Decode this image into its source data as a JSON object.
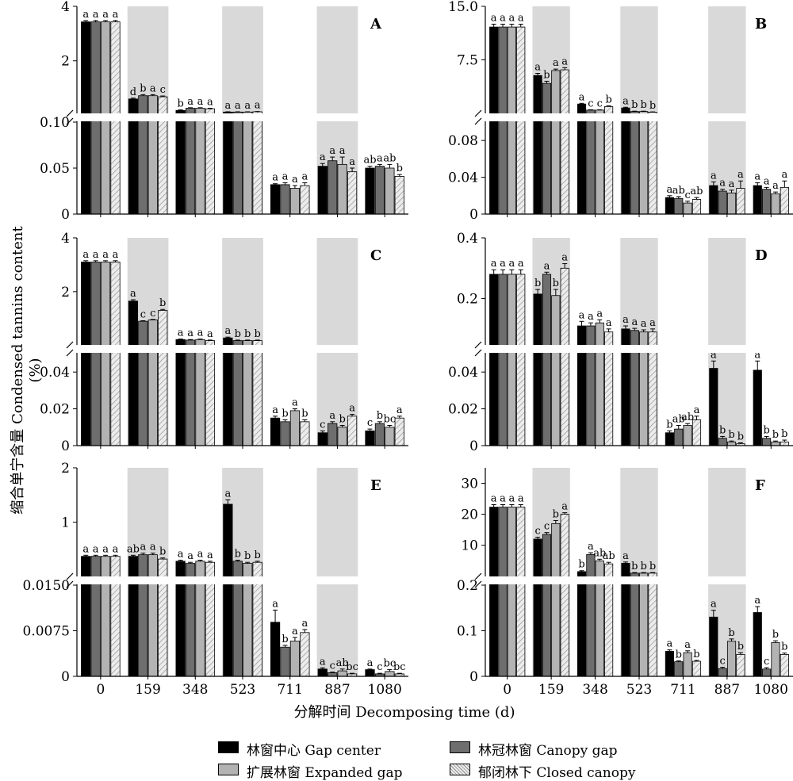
{
  "chart_data": {
    "type": "bar",
    "xlabel": "分解时间 Decomposing time (d)",
    "ylabel": "缩合单宁含量 Condensed tannins content (%)",
    "categories": [
      "0",
      "159",
      "348",
      "523",
      "711",
      "887",
      "1080"
    ],
    "series_names": [
      "林窗中心 Gap center",
      "林冠林窗 Canopy gap",
      "扩展林窗 Expanded gap",
      "郁闭林下 Closed canopy"
    ],
    "series_colors": [
      "#000000",
      "#6e6e6e",
      "#b3b3b3",
      "#e8e8e8"
    ],
    "shaded_columns": [
      "159",
      "523",
      "887"
    ],
    "panels": [
      {
        "label": "A",
        "upper_ticks": [
          "2",
          "4"
        ],
        "lower_ticks": [
          "0",
          "0.05",
          "0.10"
        ],
        "upper_range": [
          0.1,
          4
        ],
        "lower_range": [
          0,
          0.1
        ],
        "values": [
          [
            3.43,
            3.43,
            3.43,
            3.43
          ],
          [
            0.6,
            0.72,
            0.72,
            0.68
          ],
          [
            0.18,
            0.26,
            0.26,
            0.24
          ],
          [
            0.12,
            0.12,
            0.12,
            0.13
          ],
          [
            0.032,
            0.032,
            0.028,
            0.031
          ],
          [
            0.052,
            0.058,
            0.054,
            0.046
          ],
          [
            0.05,
            0.052,
            0.05,
            0.041
          ]
        ],
        "errors": [
          [
            0.05,
            0.05,
            0.05,
            0.05
          ],
          [
            0.03,
            0.04,
            0.04,
            0.03
          ],
          [
            0.02,
            0.02,
            0.02,
            0.02
          ],
          [
            0.01,
            0.01,
            0.01,
            0.01
          ],
          [
            0.001,
            0.002,
            0.003,
            0.003
          ],
          [
            0.003,
            0.004,
            0.008,
            0.004
          ],
          [
            0.002,
            0.002,
            0.004,
            0.002
          ]
        ],
        "letters": [
          [
            "a",
            "a",
            "a",
            "a"
          ],
          [
            "d",
            "b",
            "a",
            "c"
          ],
          [
            "b",
            "a",
            "a",
            "a"
          ],
          [
            "a",
            "a",
            "a",
            "a"
          ],
          [
            "a",
            "a",
            "a",
            "a"
          ],
          [
            "a",
            "a",
            "a",
            "a"
          ],
          [
            "ab",
            "a",
            "ab",
            "b"
          ]
        ]
      },
      {
        "label": "B",
        "upper_ticks": [
          "7.5",
          "15.0"
        ],
        "lower_ticks": [
          "0",
          "0.04",
          "0.08"
        ],
        "upper_range": [
          0.1,
          15
        ],
        "lower_range": [
          0,
          0.1
        ],
        "values": [
          [
            12.1,
            12.1,
            12.1,
            12.1
          ],
          [
            5.3,
            4.2,
            6.0,
            6.1
          ],
          [
            1.3,
            0.45,
            0.45,
            0.95
          ],
          [
            0.75,
            0.25,
            0.25,
            0.15
          ],
          [
            0.018,
            0.017,
            0.012,
            0.016
          ],
          [
            0.031,
            0.025,
            0.023,
            0.028
          ],
          [
            0.031,
            0.027,
            0.022,
            0.029
          ]
        ],
        "errors": [
          [
            0.4,
            0.4,
            0.4,
            0.4
          ],
          [
            0.3,
            0.3,
            0.2,
            0.3
          ],
          [
            0.1,
            0.05,
            0.05,
            0.1
          ],
          [
            0.1,
            0.05,
            0.05,
            0.05
          ],
          [
            0.002,
            0.002,
            0.002,
            0.002
          ],
          [
            0.004,
            0.002,
            0.003,
            0.008
          ],
          [
            0.003,
            0.002,
            0.002,
            0.007
          ]
        ],
        "letters": [
          [
            "a",
            "a",
            "a",
            "a"
          ],
          [
            "a",
            "b",
            "a",
            "a"
          ],
          [
            "a",
            "c",
            "c",
            "b"
          ],
          [
            "a",
            "b",
            "b",
            "b"
          ],
          [
            "a",
            "ab",
            "c",
            "ab"
          ],
          [
            "a",
            "a",
            "a",
            "a"
          ],
          [
            "a",
            "a",
            "a",
            "a"
          ]
        ]
      },
      {
        "label": "C",
        "upper_ticks": [
          "2",
          "4"
        ],
        "lower_ticks": [
          "0",
          "0.02",
          "0.04"
        ],
        "upper_range": [
          0.05,
          4
        ],
        "lower_range": [
          0,
          0.05
        ],
        "values": [
          [
            3.1,
            3.1,
            3.1,
            3.1
          ],
          [
            1.65,
            0.9,
            0.95,
            1.3
          ],
          [
            0.22,
            0.2,
            0.22,
            0.18
          ],
          [
            0.28,
            0.18,
            0.18,
            0.18
          ],
          [
            0.015,
            0.013,
            0.019,
            0.013
          ],
          [
            0.007,
            0.012,
            0.01,
            0.016
          ],
          [
            0.008,
            0.012,
            0.01,
            0.015
          ]
        ],
        "errors": [
          [
            0.05,
            0.05,
            0.05,
            0.05
          ],
          [
            0.05,
            0.02,
            0.02,
            0.04
          ],
          [
            0.02,
            0.02,
            0.02,
            0.02
          ],
          [
            0.03,
            0.02,
            0.02,
            0.02
          ],
          [
            0.001,
            0.001,
            0.001,
            0.001
          ],
          [
            0.001,
            0.001,
            0.001,
            0.001
          ],
          [
            0.001,
            0.001,
            0.001,
            0.001
          ]
        ],
        "letters": [
          [
            "a",
            "a",
            "a",
            "a"
          ],
          [
            "a",
            "c",
            "c",
            "b"
          ],
          [
            "a",
            "a",
            "a",
            "a"
          ],
          [
            "a",
            "b",
            "b",
            "b"
          ],
          [
            "a",
            "b",
            "a",
            "b"
          ],
          [
            "c",
            "a",
            "b",
            "a"
          ],
          [
            "c",
            "b",
            "bc",
            "a"
          ]
        ]
      },
      {
        "label": "D",
        "upper_ticks": [
          "0.2",
          "0.4"
        ],
        "lower_ticks": [
          "0",
          "0.02",
          "0.04"
        ],
        "upper_range": [
          0.05,
          0.4
        ],
        "lower_range": [
          0,
          0.05
        ],
        "values": [
          [
            0.28,
            0.28,
            0.28,
            0.28
          ],
          [
            0.215,
            0.28,
            0.21,
            0.3
          ],
          [
            0.11,
            0.11,
            0.12,
            0.09
          ],
          [
            0.1,
            0.095,
            0.09,
            0.09
          ],
          [
            0.007,
            0.009,
            0.011,
            0.014
          ],
          [
            0.042,
            0.004,
            0.002,
            0.001
          ],
          [
            0.041,
            0.004,
            0.002,
            0.002
          ]
        ],
        "errors": [
          [
            0.015,
            0.015,
            0.015,
            0.015
          ],
          [
            0.015,
            0.007,
            0.02,
            0.015
          ],
          [
            0.015,
            0.01,
            0.01,
            0.01
          ],
          [
            0.01,
            0.007,
            0.007,
            0.01
          ],
          [
            0.001,
            0.002,
            0.001,
            0.002
          ],
          [
            0.004,
            0.001,
            0.0005,
            0.0005
          ],
          [
            0.005,
            0.001,
            0.0005,
            0.001
          ]
        ],
        "letters": [
          [
            "a",
            "a",
            "a",
            "a"
          ],
          [
            "b",
            "a",
            "b",
            "a"
          ],
          [
            "a",
            "a",
            "a",
            "a"
          ],
          [
            "a",
            "a",
            "a",
            "a"
          ],
          [
            "b",
            "ab",
            "ab",
            "a"
          ],
          [
            "a",
            "b",
            "b",
            "b"
          ],
          [
            "a",
            "b",
            "b",
            "b"
          ]
        ]
      },
      {
        "label": "E",
        "upper_ticks": [
          "1",
          "2"
        ],
        "lower_ticks": [
          "0",
          "0.0075",
          "0.0150"
        ],
        "upper_range": [
          0.015,
          2
        ],
        "lower_range": [
          0,
          0.015
        ],
        "values": [
          [
            0.37,
            0.37,
            0.37,
            0.37
          ],
          [
            0.37,
            0.4,
            0.4,
            0.32
          ],
          [
            0.28,
            0.24,
            0.28,
            0.26
          ],
          [
            1.33,
            0.28,
            0.24,
            0.26
          ],
          [
            0.0089,
            0.0048,
            0.0058,
            0.0072
          ],
          [
            0.0012,
            0.0006,
            0.0009,
            0.0004
          ],
          [
            0.0011,
            0.0004,
            0.0008,
            0.0004
          ]
        ],
        "errors": [
          [
            0.02,
            0.02,
            0.02,
            0.02
          ],
          [
            0.02,
            0.03,
            0.03,
            0.02
          ],
          [
            0.02,
            0.02,
            0.02,
            0.02
          ],
          [
            0.08,
            0.02,
            0.02,
            0.02
          ],
          [
            0.002,
            0.0003,
            0.0006,
            0.0005
          ],
          [
            0.0002,
            0.0001,
            0.0003,
            0.0001
          ],
          [
            0.0001,
            0.0001,
            0.0003,
            0.0001
          ]
        ],
        "letters": [
          [
            "a",
            "a",
            "a",
            "a"
          ],
          [
            "ab",
            "a",
            "a",
            "b"
          ],
          [
            "a",
            "a",
            "a",
            "a"
          ],
          [
            "a",
            "b",
            "b",
            "b"
          ],
          [
            "a",
            "b",
            "a",
            "a"
          ],
          [
            "a",
            "c",
            "ab",
            "bc"
          ],
          [
            "a",
            "c",
            "bc",
            "bc"
          ]
        ]
      },
      {
        "label": "F",
        "upper_ticks": [
          "10",
          "20",
          "30"
        ],
        "lower_ticks": [
          "0",
          "0.1",
          "0.2"
        ],
        "upper_range": [
          0.2,
          35
        ],
        "lower_range": [
          0,
          0.2
        ],
        "values": [
          [
            22.3,
            22.3,
            22.3,
            22.3
          ],
          [
            12.0,
            13.5,
            17.0,
            20.0
          ],
          [
            1.5,
            7.0,
            5.0,
            4.0
          ],
          [
            4.2,
            1.0,
            1.0,
            1.0
          ],
          [
            0.055,
            0.032,
            0.052,
            0.033
          ],
          [
            0.13,
            0.017,
            0.077,
            0.048
          ],
          [
            0.14,
            0.016,
            0.074,
            0.048
          ]
        ],
        "errors": [
          [
            0.8,
            0.8,
            0.8,
            0.8
          ],
          [
            0.6,
            0.6,
            1.0,
            0.5
          ],
          [
            0.3,
            0.6,
            0.5,
            0.5
          ],
          [
            0.4,
            0.2,
            0.2,
            0.2
          ],
          [
            0.003,
            0.002,
            0.004,
            0.002
          ],
          [
            0.015,
            0.003,
            0.005,
            0.004
          ],
          [
            0.013,
            0.003,
            0.004,
            0.003
          ]
        ],
        "letters": [
          [
            "a",
            "a",
            "a",
            "a"
          ],
          [
            "c",
            "c",
            "b",
            "a"
          ],
          [
            "b",
            "a",
            "ab",
            "ab"
          ],
          [
            "a",
            "b",
            "b",
            "b"
          ],
          [
            "a",
            "b",
            "a",
            "b"
          ],
          [
            "a",
            "c",
            "b",
            "b"
          ],
          [
            "a",
            "c",
            "b",
            "b"
          ]
        ]
      }
    ]
  }
}
